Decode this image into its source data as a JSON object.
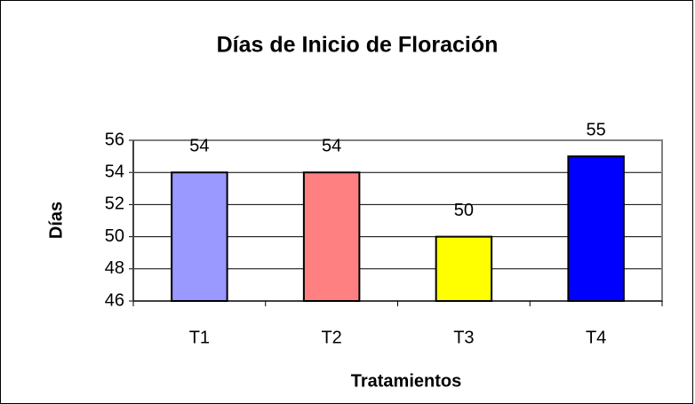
{
  "chart_data": {
    "type": "bar",
    "title": "Días de Inicio de Floración",
    "x_label": "Tratamientos",
    "y_label": "Días",
    "categories": [
      "T1",
      "T2",
      "T3",
      "T4"
    ],
    "values": [
      54,
      54,
      50,
      55
    ],
    "colors": [
      "#9999ff",
      "#ff8080",
      "#ffff00",
      "#0000ff"
    ],
    "ylim": [
      46,
      56
    ],
    "yticks": [
      46,
      48,
      50,
      52,
      54,
      56
    ],
    "grid": true
  }
}
